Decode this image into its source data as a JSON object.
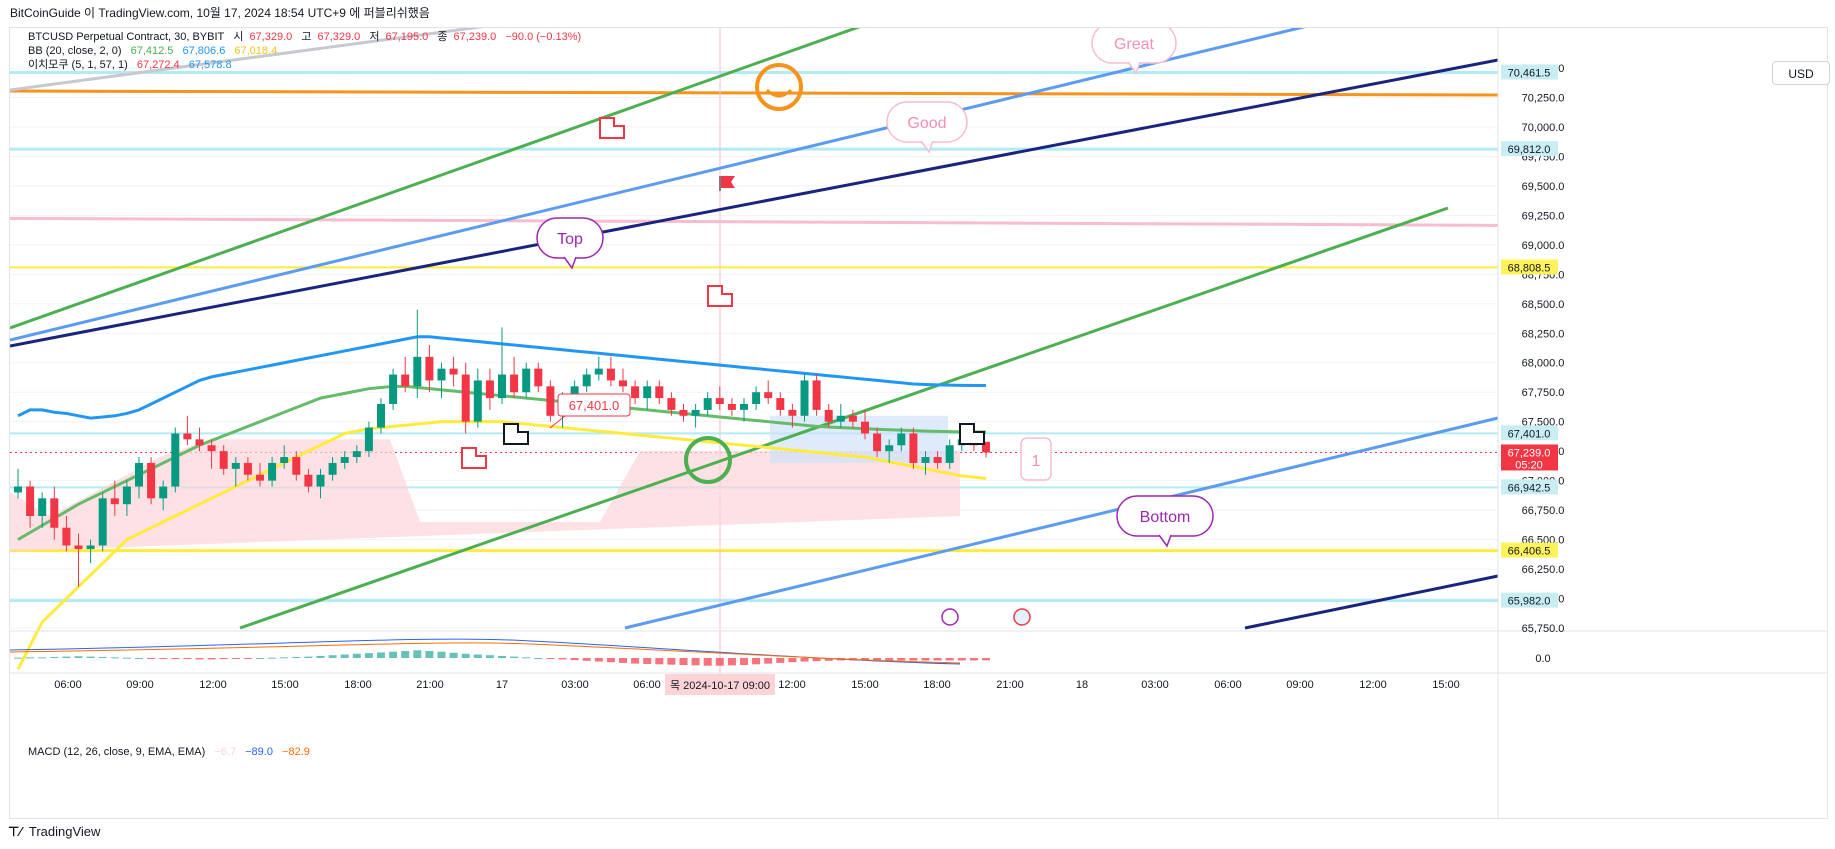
{
  "header": {
    "attribution": "BitCoinGuide 이 TradingView.com, 10월 17, 2024 18:54 UTC+9 에 퍼블리쉬했음"
  },
  "legend": {
    "symbol": "BTCUSD Perpetual Contract, 30, BYBIT",
    "o_label": "시",
    "o_value": "67,329.0",
    "h_label": "고",
    "h_value": "67,329.0",
    "l_label": "저",
    "l_value": "67,195.0",
    "c_label": "종",
    "c_value": "67,239.0",
    "change": "−90.0 (−0.13%)",
    "bb_label": "BB (20, close, 2, 0)",
    "bb_basis": "67,412.5",
    "bb_upper": "67,806.6",
    "bb_lower": "67,018.4",
    "ichi_label": "이치모쿠 (5, 1, 57, 1)",
    "ichi_a": "67,272.4",
    "ichi_b": "67,578.8",
    "macd_label": "MACD (12, 26, close, 9, EMA, EMA)",
    "macd_hist": "−6.7",
    "macd_line": "−89.0",
    "macd_signal": "−82.9"
  },
  "currency_button": "USD",
  "price_axis": {
    "ticks": [
      "70,500.0",
      "70,250.0",
      "70,000.0",
      "69,750.0",
      "69,500.0",
      "69,250.0",
      "69,000.0",
      "68,750.0",
      "68,500.0",
      "68,250.0",
      "68,000.0",
      "67,750.0",
      "67,500.0",
      "67,250.0",
      "67,000.0",
      "66,750.0",
      "66,500.0",
      "66,250.0",
      "66,000.0",
      "65,750.0"
    ],
    "macd_tick": "0.0",
    "badges": [
      {
        "value": 70461.5,
        "text": "70,461.5",
        "bg": "#c8eef3",
        "fg": "#131722"
      },
      {
        "value": 69812.0,
        "text": "69,812.0",
        "bg": "#c8eef3",
        "fg": "#131722"
      },
      {
        "value": 68808.5,
        "text": "68,808.5",
        "bg": "#fff35c",
        "fg": "#131722"
      },
      {
        "value": 67401.0,
        "text": "67,401.0",
        "bg": "#c8eef3",
        "fg": "#131722"
      },
      {
        "value": 67239.0,
        "text": "67,239.0",
        "bg": "#f23645",
        "fg": "#ffffff",
        "sub": "05:20"
      },
      {
        "value": 66942.5,
        "text": "66,942.5",
        "bg": "#c8eef3",
        "fg": "#131722"
      },
      {
        "value": 66406.5,
        "text": "66,406.5",
        "bg": "#fff35c",
        "fg": "#131722"
      },
      {
        "value": 65982.0,
        "text": "65,982.0",
        "bg": "#c8eef3",
        "fg": "#131722"
      }
    ]
  },
  "time_axis": {
    "labels": [
      "06:00",
      "09:00",
      "12:00",
      "15:00",
      "18:00",
      "21:00",
      "17",
      "03:00",
      "06:00",
      "12:00",
      "15:00",
      "18:00",
      "21:00",
      "18",
      "03:00",
      "06:00",
      "09:00",
      "12:00",
      "15:00"
    ],
    "crosshair_label": "목  2024-10-17   09:00"
  },
  "annotations": {
    "top": "Top",
    "good": "Good",
    "great": "Great",
    "bottom": "Bottom",
    "price_note": "67,401.0",
    "marker": "1"
  },
  "footer": {
    "brand": "TradingView"
  },
  "colors": {
    "up": "#089981",
    "down": "#f23645",
    "bb_upper": "#2196f3",
    "bb_basis": "#66bb6a",
    "bb_lower": "#ffeb3b",
    "cloud": "#fcd4d8",
    "navy": "#1a237e",
    "channel_green": "#4caf50",
    "channel_blue": "#5b9cf0",
    "orange": "#f7931a",
    "pink": "#f8bbd0",
    "yellow": "#ffeb3b",
    "cyan": "#b2ebf2"
  },
  "chart_data": {
    "type": "candlestick",
    "timeframe": "30",
    "y_range": [
      65700,
      70650
    ],
    "candles": [
      [
        66900,
        67100,
        66850,
        66950
      ],
      [
        66950,
        67000,
        66600,
        66700
      ],
      [
        66700,
        66900,
        66600,
        66850
      ],
      [
        66850,
        66950,
        66500,
        66600
      ],
      [
        66600,
        66700,
        66400,
        66450
      ],
      [
        66450,
        66550,
        66100,
        66420
      ],
      [
        66420,
        66500,
        66300,
        66450
      ],
      [
        66450,
        66900,
        66400,
        66850
      ],
      [
        66850,
        67000,
        66700,
        66800
      ],
      [
        66800,
        67000,
        66700,
        66950
      ],
      [
        66950,
        67200,
        66850,
        67150
      ],
      [
        67150,
        67200,
        66800,
        66850
      ],
      [
        66850,
        67000,
        66750,
        66950
      ],
      [
        66950,
        67450,
        66900,
        67400
      ],
      [
        67400,
        67550,
        67300,
        67350
      ],
      [
        67350,
        67450,
        67250,
        67300
      ],
      [
        67300,
        67350,
        67100,
        67250
      ],
      [
        67250,
        67300,
        67050,
        67100
      ],
      [
        67100,
        67200,
        66950,
        67150
      ],
      [
        67150,
        67200,
        67000,
        67050
      ],
      [
        67050,
        67150,
        66950,
        67000
      ],
      [
        67000,
        67200,
        66950,
        67150
      ],
      [
        67150,
        67300,
        67100,
        67200
      ],
      [
        67200,
        67250,
        67000,
        67050
      ],
      [
        67050,
        67100,
        66900,
        66950
      ],
      [
        66950,
        67100,
        66850,
        67050
      ],
      [
        67050,
        67200,
        67000,
        67150
      ],
      [
        67150,
        67250,
        67100,
        67200
      ],
      [
        67200,
        67300,
        67150,
        67250
      ],
      [
        67250,
        67500,
        67200,
        67450
      ],
      [
        67450,
        67700,
        67400,
        67650
      ],
      [
        67650,
        67950,
        67600,
        67900
      ],
      [
        67900,
        68050,
        67750,
        67800
      ],
      [
        67800,
        68450,
        67700,
        68050
      ],
      [
        68050,
        68150,
        67750,
        67850
      ],
      [
        67850,
        68000,
        67700,
        67950
      ],
      [
        67950,
        68050,
        67800,
        67900
      ],
      [
        67900,
        68000,
        67400,
        67500
      ],
      [
        67500,
        67950,
        67450,
        67850
      ],
      [
        67850,
        67950,
        67600,
        67700
      ],
      [
        67700,
        68300,
        67650,
        67900
      ],
      [
        67900,
        68050,
        67700,
        67750
      ],
      [
        67750,
        68000,
        67700,
        67950
      ],
      [
        67950,
        68000,
        67750,
        67800
      ],
      [
        67800,
        67850,
        67500,
        67550
      ],
      [
        67550,
        67750,
        67450,
        67700
      ],
      [
        67700,
        67850,
        67650,
        67800
      ],
      [
        67800,
        67950,
        67750,
        67900
      ],
      [
        67900,
        68050,
        67850,
        67950
      ],
      [
        67950,
        68050,
        67800,
        67850
      ],
      [
        67850,
        67950,
        67750,
        67800
      ],
      [
        67800,
        67850,
        67650,
        67700
      ],
      [
        67700,
        67850,
        67600,
        67800
      ],
      [
        67800,
        67850,
        67650,
        67700
      ],
      [
        67700,
        67750,
        67550,
        67600
      ],
      [
        67600,
        67650,
        67500,
        67550
      ],
      [
        67550,
        67650,
        67450,
        67600
      ],
      [
        67600,
        67750,
        67550,
        67700
      ],
      [
        67700,
        67800,
        67600,
        67650
      ],
      [
        67650,
        67700,
        67550,
        67600
      ],
      [
        67600,
        67700,
        67500,
        67650
      ],
      [
        67650,
        67800,
        67600,
        67750
      ],
      [
        67750,
        67850,
        67650,
        67700
      ],
      [
        67700,
        67750,
        67550,
        67600
      ],
      [
        67600,
        67650,
        67450,
        67550
      ],
      [
        67550,
        67900,
        67500,
        67850
      ],
      [
        67850,
        67900,
        67550,
        67600
      ],
      [
        67600,
        67650,
        67450,
        67500
      ],
      [
        67500,
        67650,
        67450,
        67550
      ],
      [
        67550,
        67600,
        67450,
        67500
      ],
      [
        67500,
        67600,
        67350,
        67400
      ],
      [
        67400,
        67450,
        67200,
        67250
      ],
      [
        67250,
        67350,
        67150,
        67300
      ],
      [
        67300,
        67450,
        67250,
        67400
      ],
      [
        67400,
        67450,
        67100,
        67150
      ],
      [
        67150,
        67250,
        67050,
        67200
      ],
      [
        67200,
        67250,
        67100,
        67150
      ],
      [
        67150,
        67350,
        67100,
        67300
      ],
      [
        67300,
        67400,
        67250,
        67350
      ],
      [
        67350,
        67420,
        67250,
        67300
      ],
      [
        67329,
        67329,
        67195,
        67239
      ]
    ],
    "bb_upper": [
      67550,
      67600,
      67600,
      67580,
      67570,
      67550,
      67530,
      67540,
      67550,
      67570,
      67600,
      67650,
      67700,
      67750,
      67800,
      67850,
      67880,
      67900,
      67920,
      67940,
      67960,
      67980,
      68000,
      68020,
      68040,
      68060,
      68080,
      68100,
      68120,
      68140,
      68160,
      68180,
      68200,
      68220,
      68220,
      68210,
      68200,
      68190,
      68180,
      68170,
      68160,
      68150,
      68140,
      68130,
      68120,
      68110,
      68100,
      68090,
      68080,
      68070,
      68060,
      68050,
      68040,
      68030,
      68020,
      68010,
      68000,
      67990,
      67980,
      67970,
      67960,
      67950,
      67940,
      67930,
      67920,
      67910,
      67900,
      67890,
      67880,
      67870,
      67860,
      67850,
      67840,
      67830,
      67820,
      67815,
      67812,
      67810,
      67808,
      67807,
      67806.6
    ],
    "bb_basis": [
      66500,
      66560,
      66620,
      66680,
      66740,
      66800,
      66850,
      66900,
      66950,
      67000,
      67050,
      67100,
      67150,
      67200,
      67250,
      67300,
      67340,
      67380,
      67420,
      67460,
      67500,
      67540,
      67580,
      67620,
      67660,
      67700,
      67720,
      67740,
      67760,
      67780,
      67790,
      67800,
      67800,
      67790,
      67780,
      67770,
      67760,
      67750,
      67740,
      67730,
      67720,
      67710,
      67700,
      67690,
      67680,
      67670,
      67660,
      67650,
      67640,
      67630,
      67620,
      67610,
      67600,
      67590,
      67580,
      67570,
      67560,
      67550,
      67540,
      67530,
      67520,
      67510,
      67500,
      67490,
      67480,
      67470,
      67460,
      67455,
      67450,
      67445,
      67440,
      67436,
      67432,
      67428,
      67424,
      67420,
      67418,
      67416,
      67414,
      67413,
      67412.5
    ],
    "bb_lower": [
      65400,
      65600,
      65800,
      65900,
      66000,
      66100,
      66200,
      66300,
      66400,
      66500,
      66550,
      66600,
      66650,
      66700,
      66750,
      66800,
      66850,
      66900,
      66950,
      67000,
      67050,
      67100,
      67150,
      67200,
      67250,
      67300,
      67350,
      67400,
      67420,
      67440,
      67450,
      67460,
      67470,
      67480,
      67490,
      67500,
      67500,
      67500,
      67500,
      67500,
      67500,
      67490,
      67480,
      67470,
      67460,
      67450,
      67440,
      67430,
      67420,
      67410,
      67400,
      67390,
      67380,
      67370,
      67360,
      67350,
      67340,
      67330,
      67320,
      67310,
      67300,
      67290,
      67280,
      67270,
      67260,
      67250,
      67240,
      67230,
      67220,
      67210,
      67200,
      67180,
      67160,
      67140,
      67120,
      67100,
      67080,
      67060,
      67040,
      67030,
      67018.4
    ],
    "macd_histogram": [
      1,
      2,
      2,
      3,
      4,
      5,
      4,
      3,
      2,
      1,
      0,
      -1,
      -2,
      -3,
      -3,
      -4,
      -4,
      -3,
      -2,
      -1,
      0,
      1,
      2,
      3,
      4,
      6,
      8,
      10,
      12,
      14,
      16,
      18,
      20,
      22,
      20,
      18,
      15,
      12,
      10,
      8,
      6,
      4,
      2,
      0,
      -2,
      -4,
      -6,
      -8,
      -10,
      -12,
      -14,
      -16,
      -17,
      -18,
      -19,
      -20,
      -21,
      -22,
      -22,
      -21,
      -20,
      -18,
      -16,
      -14,
      -12,
      -10,
      -9,
      -8,
      -7,
      -7,
      -7,
      -7,
      -7,
      -7,
      -7,
      -7,
      -7,
      -7,
      -7,
      -7,
      -6.7
    ]
  }
}
